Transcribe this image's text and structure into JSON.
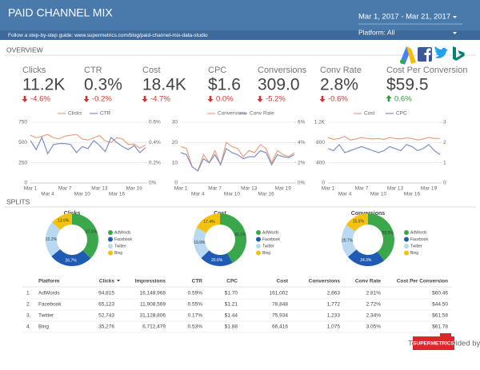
{
  "header": {
    "title": "PAID CHANNEL MIX",
    "guide": "Follow a step-by-step guide: www.supermetrics.com/blog/paid-channel-mix-data-studio",
    "date_range": "Mar 1, 2017 - Mar 21, 2017",
    "platform": "Platform: All"
  },
  "overview": {
    "title": "OVERVIEW",
    "kpis": [
      {
        "label": "Clicks",
        "value": "11.2K",
        "change": "-4.6%",
        "direction": "down"
      },
      {
        "label": "CTR",
        "value": "0.3%",
        "change": "-0.2%",
        "direction": "down"
      },
      {
        "label": "Cost",
        "value": "18.4K",
        "change": "-4.7%",
        "direction": "down"
      },
      {
        "label": "CPC",
        "value": "$1.6",
        "change": "0.0%",
        "direction": "down"
      },
      {
        "label": "Conversions",
        "value": "309.0",
        "change": "-5.2%",
        "direction": "down"
      },
      {
        "label": "Conv Rate",
        "value": "2.8%",
        "change": "-0.6%",
        "direction": "down"
      },
      {
        "label": "Cost Per Conversion",
        "value": "$59.5",
        "change": "0.6%",
        "direction": "up"
      }
    ]
  },
  "charts": [
    {
      "type": "line",
      "grid": true,
      "categories": [
        "Mar 1",
        null,
        null,
        "Mar 4",
        null,
        null,
        "Mar 7",
        null,
        null,
        "Mar 10",
        null,
        null,
        "Mar 13",
        null,
        null,
        "Mar 16",
        null,
        null,
        "Mar 19",
        null,
        null
      ],
      "series": [
        {
          "name": "Clicks",
          "color": "#e8a07f",
          "values": [
            590,
            560,
            575,
            600,
            560,
            545,
            580,
            590,
            600,
            545,
            530,
            560,
            585,
            520,
            500,
            560,
            545,
            475,
            480,
            430,
            470
          ]
        },
        {
          "name": "CTR",
          "color": "#7d8fc4",
          "axis": "y2",
          "values": [
            0.42,
            0.33,
            0.45,
            0.29,
            0.38,
            0.39,
            0.39,
            0.38,
            0.3,
            0.36,
            0.34,
            0.42,
            0.37,
            0.31,
            0.45,
            0.4,
            0.36,
            0.33,
            0.37,
            0.3,
            0.35
          ]
        }
      ],
      "ylim": [
        0,
        750
      ],
      "yticks": [
        0,
        250,
        500,
        750
      ],
      "y2lim": [
        0,
        0.6
      ],
      "y2ticks": [
        {
          "value": 0,
          "label": "0%"
        },
        {
          "value": 0.2,
          "label": "0.2%"
        },
        {
          "value": 0.4,
          "label": "0.4%"
        },
        {
          "value": 0.6,
          "label": "0.6%"
        }
      ]
    },
    {
      "type": "line",
      "grid": true,
      "categories": [
        "Mar 1",
        null,
        null,
        "Mar 4",
        null,
        null,
        "Mar 7",
        null,
        null,
        "Mar 10",
        null,
        null,
        "Mar 13",
        null,
        null,
        "Mar 16",
        null,
        null,
        "Mar 19",
        null,
        null
      ],
      "series": [
        {
          "name": "Conversions",
          "color": "#e8a07f",
          "values": [
            18,
            17,
            8,
            6,
            14,
            10,
            16,
            9,
            20,
            18,
            17,
            13,
            16,
            15,
            19,
            17,
            10,
            16,
            14,
            13,
            15
          ]
        },
        {
          "name": "Conv Rate",
          "color": "#7d8fc4",
          "axis": "y2",
          "values": [
            3.0,
            2.8,
            1.6,
            1.2,
            2.4,
            2.0,
            2.8,
            1.8,
            3.4,
            3.0,
            2.8,
            2.4,
            2.6,
            2.6,
            3.2,
            3.0,
            1.8,
            2.8,
            2.6,
            2.5,
            2.8
          ]
        }
      ],
      "ylim": [
        0,
        30
      ],
      "yticks": [
        0,
        10,
        20,
        30
      ],
      "y2lim": [
        0,
        6
      ],
      "y2ticks": [
        {
          "value": 0,
          "label": "0%"
        },
        {
          "value": 2,
          "label": "2%"
        },
        {
          "value": 4,
          "label": "4%"
        },
        {
          "value": 6,
          "label": "6%"
        }
      ]
    },
    {
      "type": "line",
      "grid": true,
      "categories": [
        "Mar 1",
        null,
        null,
        "Mar 4",
        null,
        null,
        "Mar 7",
        null,
        null,
        "Mar 10",
        null,
        null,
        "Mar 13",
        null,
        null,
        "Mar 16",
        null,
        null,
        "Mar 19",
        null,
        null
      ],
      "series": [
        {
          "name": "Cost",
          "color": "#e8a07f",
          "values": [
            900,
            860,
            880,
            920,
            850,
            870,
            900,
            880,
            870,
            880,
            860,
            900,
            880,
            870,
            890,
            880,
            850,
            870,
            900,
            880,
            880
          ]
        },
        {
          "name": "CPC",
          "color": "#7d8fc4",
          "axis": "y2",
          "values": [
            1.7,
            1.6,
            1.9,
            1.5,
            1.6,
            1.7,
            1.8,
            1.7,
            1.6,
            1.5,
            1.6,
            1.8,
            1.7,
            1.6,
            1.9,
            1.8,
            1.6,
            1.7,
            1.9,
            1.6,
            1.4
          ]
        }
      ],
      "ylim": [
        0,
        1200
      ],
      "yticks": [
        0,
        400,
        800,
        {
          "value": 1200,
          "label": "1.2K"
        }
      ],
      "y2lim": [
        0,
        3
      ],
      "y2ticks": [
        0,
        1,
        2,
        3
      ]
    }
  ],
  "splits": {
    "title": "SPLITS",
    "donuts": [
      {
        "type": "pie",
        "title": "Clicks",
        "categories": [
          "AdWords",
          "Facebook",
          "Twitter",
          "Bing"
        ],
        "colors": [
          "#3aa84a",
          "#1f5bb5",
          "#b9d8f2",
          "#f4c20d"
        ],
        "values": [
          37.5,
          26.7,
          22.2,
          13.6
        ],
        "value_labels": [
          "37.5%",
          "26.7%",
          "22.2%",
          "13.6%"
        ]
      },
      {
        "type": "pie",
        "title": "Cost",
        "categories": [
          "AdWords",
          "Facebook",
          "Twitter",
          "Bing"
        ],
        "colors": [
          "#3aa84a",
          "#1f5bb5",
          "#b9d8f2",
          "#f4c20d"
        ],
        "values": [
          42.1,
          20.6,
          19.9,
          17.4
        ],
        "value_labels": [
          "42.1%",
          "20.6%",
          "19.9%",
          "17.4%"
        ]
      },
      {
        "type": "pie",
        "title": "Conversions",
        "categories": [
          "AdWords",
          "Facebook",
          "Twitter",
          "Bing"
        ],
        "colors": [
          "#3aa84a",
          "#1f5bb5",
          "#b9d8f2",
          "#f4c20d"
        ],
        "values": [
          39.5,
          24.3,
          20.7,
          15.5
        ],
        "value_labels": [
          "39.5%",
          "24.3%",
          "20.7%",
          "15.5%"
        ]
      }
    ]
  },
  "table": {
    "columns": [
      "Platform",
      "Clicks",
      "Impressions",
      "CTR",
      "CPC",
      "Cost",
      "Conversions",
      "Conv Rate",
      "Cost Per Conversion"
    ],
    "rows": [
      [
        "1.",
        "AdWords",
        "94,815",
        "16,148,968",
        "0.59%",
        "$1.70",
        "161,002",
        "2,663",
        "2.81%",
        "$60.46"
      ],
      [
        "2.",
        "Facebook",
        "65,123",
        "11,908,569",
        "0.55%",
        "$1.21",
        "78,848",
        "1,772",
        "2.72%",
        "$44.50"
      ],
      [
        "3.",
        "Twitter",
        "52,743",
        "31,128,806",
        "0.17%",
        "$1.44",
        "75,934",
        "1,233",
        "2.34%",
        "$61.58"
      ],
      [
        "4.",
        "Bing",
        "35,276",
        "6,712,479",
        "0.53%",
        "$1.88",
        "66,416",
        "1,075",
        "3.05%",
        "$61.78"
      ]
    ]
  },
  "footer": {
    "text": "Template provided by:",
    "logo": "SUPERMETRICS"
  }
}
